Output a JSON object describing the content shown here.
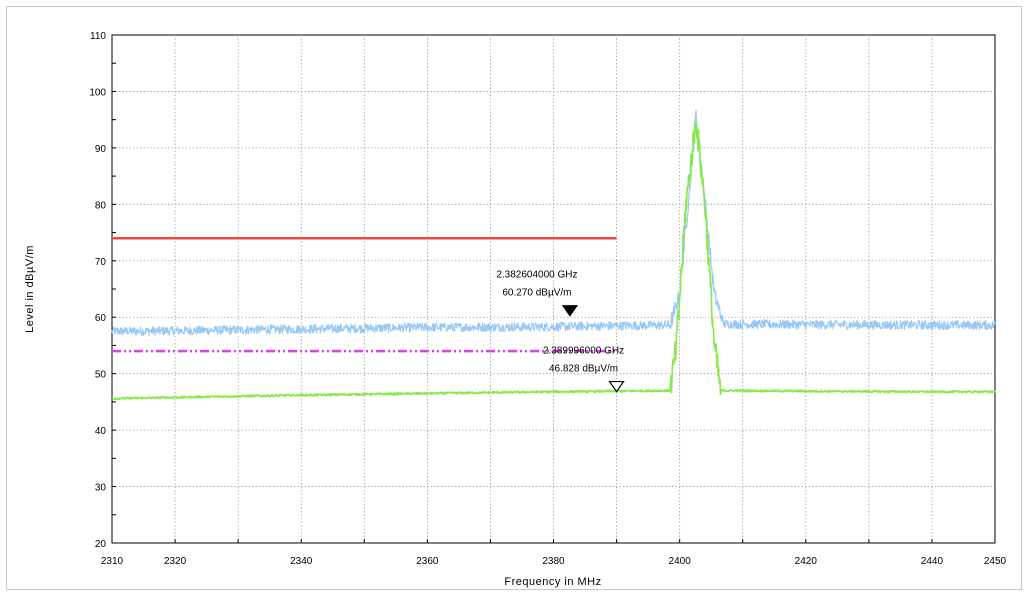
{
  "chart_data": {
    "type": "line",
    "xlabel": "Frequency in MHz",
    "ylabel": "Level in dBµV/m",
    "xlim": [
      2310,
      2450
    ],
    "ylim": [
      20,
      110
    ],
    "x_ticks": [
      2310,
      2320,
      2340,
      2360,
      2380,
      2400,
      2420,
      2440,
      2450
    ],
    "y_ticks": [
      20,
      30,
      40,
      50,
      60,
      70,
      80,
      90,
      100,
      110
    ],
    "grid": true,
    "series": [
      {
        "key": "peak",
        "color": "#99c8f2",
        "type": "noisy-trace",
        "x": [
          2310,
          2320,
          2340,
          2360,
          2380,
          2390,
          2398.5,
          2400,
          2401.5,
          2402.6,
          2403.8,
          2405.5,
          2407,
          2420,
          2440,
          2450
        ],
        "y": [
          57.5,
          57.6,
          57.9,
          58.2,
          58.3,
          58.5,
          58.6,
          64.0,
          82.0,
          96.0,
          83.0,
          64.0,
          58.8,
          58.7,
          58.6,
          58.6
        ]
      },
      {
        "key": "average",
        "color": "#88e84e",
        "type": "noisy-trace",
        "x": [
          2310,
          2320,
          2340,
          2360,
          2380,
          2390,
          2398.5,
          2399.5,
          2401,
          2402.6,
          2404,
          2405.5,
          2406.5,
          2420,
          2440,
          2450
        ],
        "y": [
          45.6,
          45.8,
          46.2,
          46.5,
          46.8,
          46.9,
          47.0,
          55.0,
          80.0,
          95.0,
          80.0,
          55.0,
          47.0,
          46.9,
          46.8,
          46.8
        ]
      },
      {
        "key": "peak-limit",
        "color": "#e8483f",
        "type": "limit",
        "x": [
          2310,
          2390
        ],
        "y": [
          74,
          74
        ]
      },
      {
        "key": "average-limit",
        "color": "#e040e8",
        "type": "limit-dashed",
        "x": [
          2310,
          2390
        ],
        "y": [
          54,
          54
        ]
      }
    ],
    "markers": [
      {
        "x": 2382.604,
        "y": 60.27,
        "style": "filled",
        "label_freq": "2.382604000 GHz",
        "label_level": "60.270 dBµV/m"
      },
      {
        "x": 2389.996,
        "y": 46.828,
        "style": "open",
        "label_freq": "2.389996000 GHz",
        "label_level": "46.828 dBµV/m"
      }
    ]
  }
}
